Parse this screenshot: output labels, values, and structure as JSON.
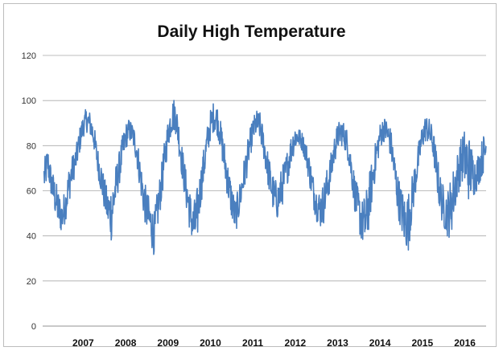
{
  "chart_data": {
    "type": "line",
    "title": "Daily High Temperature",
    "xlabel": "",
    "ylabel": "",
    "ylim": [
      0,
      120
    ],
    "yticks": [
      0,
      20,
      40,
      60,
      80,
      100,
      120
    ],
    "xlim": [
      "2006-07-01",
      "2016-12-15"
    ],
    "x_tick_labels": [
      "2007",
      "2008",
      "2009",
      "2010",
      "2011",
      "2012",
      "2013",
      "2014",
      "2015",
      "2016"
    ],
    "grid": "horizontal",
    "legend": "none",
    "colors": {
      "series": "#4a7fbf",
      "grid": "#a9a9a9"
    },
    "series": [
      {
        "x": [
          "2006-07-15",
          "2006-08-15",
          "2006-09-15",
          "2006-10-15",
          "2006-11-15",
          "2006-12-15",
          "2007-01-15",
          "2007-02-15",
          "2007-03-15",
          "2007-04-15",
          "2007-05-15",
          "2007-06-15",
          "2007-07-15",
          "2007-08-15",
          "2007-09-15",
          "2007-10-15",
          "2007-11-15",
          "2007-12-15",
          "2008-01-15",
          "2008-02-15",
          "2008-03-15",
          "2008-04-15",
          "2008-05-15",
          "2008-06-15",
          "2008-07-15",
          "2008-08-15",
          "2008-09-15",
          "2008-10-15",
          "2008-11-15",
          "2008-12-15",
          "2009-01-15",
          "2009-02-15",
          "2009-03-15",
          "2009-04-15",
          "2009-05-15",
          "2009-06-15",
          "2009-07-15",
          "2009-08-15",
          "2009-09-15",
          "2009-10-15",
          "2009-11-15",
          "2009-12-15",
          "2010-01-15",
          "2010-02-15",
          "2010-03-15",
          "2010-04-15",
          "2010-05-15",
          "2010-06-15",
          "2010-07-15",
          "2010-08-15",
          "2010-09-15",
          "2010-10-15",
          "2010-11-15",
          "2010-12-15",
          "2011-01-15",
          "2011-02-15",
          "2011-03-15",
          "2011-04-15",
          "2011-05-15",
          "2011-06-15",
          "2011-07-15",
          "2011-08-15",
          "2011-09-15",
          "2011-10-15",
          "2011-11-15",
          "2011-12-15",
          "2012-01-15",
          "2012-02-15",
          "2012-03-15",
          "2012-04-15",
          "2012-05-15",
          "2012-06-15",
          "2012-07-15",
          "2012-08-15",
          "2012-09-15",
          "2012-10-15",
          "2012-11-15",
          "2012-12-15",
          "2013-01-15",
          "2013-02-15",
          "2013-03-15",
          "2013-04-15",
          "2013-05-15",
          "2013-06-15",
          "2013-07-15",
          "2013-08-15",
          "2013-09-15",
          "2013-10-15",
          "2013-11-15",
          "2013-12-15",
          "2014-01-15",
          "2014-02-15",
          "2014-03-15",
          "2014-04-15",
          "2014-05-15",
          "2014-06-15",
          "2014-07-15",
          "2014-08-15",
          "2014-09-15",
          "2014-10-15",
          "2014-11-15",
          "2014-12-15",
          "2015-01-15",
          "2015-02-15",
          "2015-03-15",
          "2015-04-15",
          "2015-05-15",
          "2015-06-15",
          "2015-07-15",
          "2015-08-15",
          "2015-09-15",
          "2015-10-15",
          "2015-11-15",
          "2015-12-15",
          "2016-01-15",
          "2016-02-15",
          "2016-03-15",
          "2016-04-15",
          "2016-05-15",
          "2016-06-15",
          "2016-07-15",
          "2016-08-15",
          "2016-09-15",
          "2016-10-15",
          "2016-11-15",
          "2016-12-15"
        ],
        "high": [
          74,
          80,
          70,
          66,
          60,
          56,
          62,
          72,
          76,
          80,
          88,
          94,
          97,
          95,
          90,
          80,
          74,
          66,
          60,
          64,
          70,
          76,
          84,
          90,
          92,
          90,
          86,
          76,
          66,
          60,
          56,
          50,
          60,
          70,
          82,
          92,
          100,
          102,
          92,
          80,
          70,
          62,
          54,
          60,
          68,
          78,
          88,
          96,
          100,
          98,
          90,
          82,
          72,
          64,
          56,
          62,
          70,
          78,
          86,
          92,
          96,
          95,
          88,
          80,
          72,
          66,
          64,
          70,
          74,
          80,
          86,
          90,
          88,
          86,
          82,
          76,
          68,
          62,
          60,
          64,
          70,
          76,
          84,
          90,
          92,
          90,
          86,
          76,
          66,
          60,
          56,
          60,
          68,
          76,
          84,
          90,
          93,
          92,
          88,
          78,
          68,
          62,
          58,
          60,
          66,
          74,
          82,
          90,
          94,
          92,
          88,
          78,
          68,
          62,
          60,
          66,
          72,
          78,
          84,
          88,
          86,
          80,
          74,
          78,
          84,
          88
        ],
        "low": [
          56,
          62,
          54,
          46,
          40,
          38,
          44,
          52,
          60,
          66,
          74,
          82,
          84,
          82,
          76,
          66,
          56,
          48,
          40,
          32,
          46,
          58,
          66,
          76,
          80,
          78,
          70,
          58,
          46,
          38,
          32,
          28,
          38,
          50,
          62,
          76,
          82,
          84,
          74,
          62,
          50,
          40,
          32,
          28,
          46,
          58,
          70,
          80,
          84,
          82,
          74,
          62,
          52,
          44,
          38,
          44,
          52,
          60,
          70,
          78,
          82,
          80,
          72,
          62,
          52,
          46,
          44,
          48,
          54,
          62,
          70,
          76,
          78,
          76,
          70,
          60,
          50,
          44,
          40,
          42,
          50,
          58,
          68,
          76,
          78,
          76,
          70,
          58,
          46,
          38,
          32,
          28,
          40,
          54,
          66,
          76,
          80,
          78,
          72,
          60,
          46,
          38,
          30,
          28,
          42,
          54,
          66,
          76,
          80,
          78,
          72,
          58,
          46,
          40,
          36,
          34,
          44,
          54,
          60,
          56,
          50,
          52,
          56,
          60,
          64,
          66
        ]
      }
    ]
  }
}
